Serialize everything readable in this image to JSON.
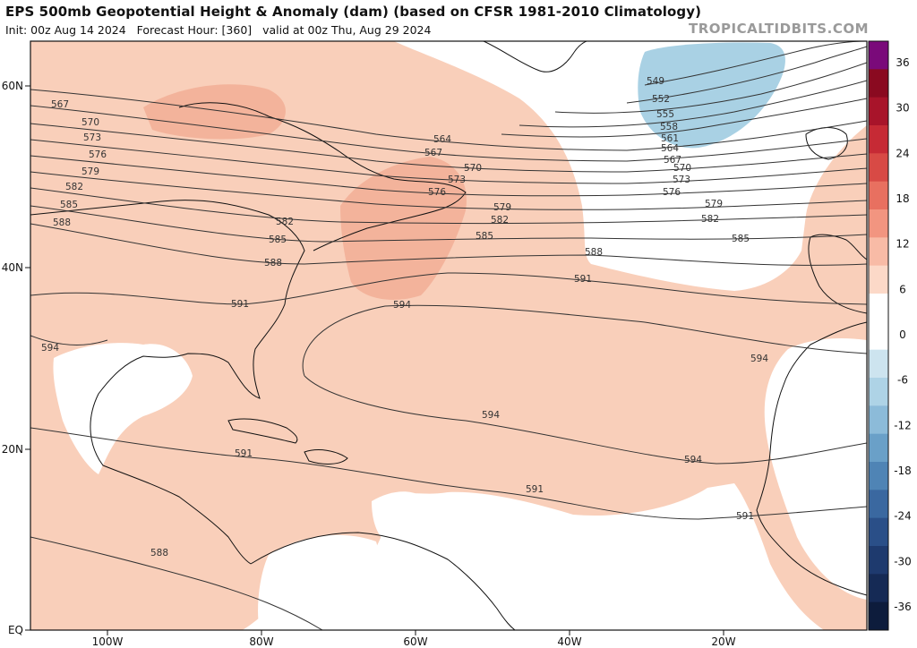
{
  "header": {
    "title": "EPS 500mb Geopotential Height & Anomaly (dam) (based on CFSR 1981-2010 Climatology)",
    "subtitle": "Init: 00z Aug 14 2024   Forecast Hour: [360]   valid at 00z Thu, Aug 29 2024",
    "credit": "TROPICALTIDBITS.COM"
  },
  "axes": {
    "lat_labels": [
      "60N",
      "40N",
      "20N",
      "EQ"
    ],
    "lon_labels": [
      "100W",
      "80W",
      "60W",
      "40W",
      "20W"
    ]
  },
  "colorbar": {
    "ticks": [
      "36",
      "30",
      "24",
      "18",
      "12",
      "6",
      "0",
      "-6",
      "-12",
      "-18",
      "-24",
      "-30",
      "-36"
    ],
    "colors": [
      "#7a0a7a",
      "#8a0a20",
      "#a8142a",
      "#c62a35",
      "#d84a45",
      "#e87060",
      "#f29580",
      "#f8bba6",
      "#fcd9c8",
      "#ffffff",
      "#ffffff",
      "#cde4ef",
      "#aed3e6",
      "#8cbbd9",
      "#6aa0c8",
      "#4f84b5",
      "#3a68a0",
      "#2a4f88",
      "#1e3a6e",
      "#152a55",
      "#0d1c3c"
    ],
    "anomaly_positive": "#f9cfba",
    "anomaly_strong": "#f3b39b",
    "anomaly_negative": "#a9d1e4"
  },
  "contours": {
    "labels": [
      "549",
      "552",
      "555",
      "558",
      "561",
      "564",
      "567",
      "570",
      "573",
      "576",
      "579",
      "582",
      "585",
      "588",
      "591",
      "594"
    ],
    "placed": [
      {
        "text": "567"
      },
      {
        "text": "570"
      },
      {
        "text": "573"
      },
      {
        "text": "576"
      },
      {
        "text": "579"
      },
      {
        "text": "582"
      },
      {
        "text": "585"
      },
      {
        "text": "588"
      },
      {
        "text": "594"
      },
      {
        "text": "582"
      },
      {
        "text": "585"
      },
      {
        "text": "588"
      },
      {
        "text": "591"
      },
      {
        "text": "564"
      },
      {
        "text": "567"
      },
      {
        "text": "570"
      },
      {
        "text": "573"
      },
      {
        "text": "576"
      },
      {
        "text": "579"
      },
      {
        "text": "582"
      },
      {
        "text": "585"
      },
      {
        "text": "588"
      },
      {
        "text": "591"
      },
      {
        "text": "594"
      },
      {
        "text": "549"
      },
      {
        "text": "552"
      },
      {
        "text": "555"
      },
      {
        "text": "558"
      },
      {
        "text": "561"
      },
      {
        "text": "564"
      },
      {
        "text": "567"
      },
      {
        "text": "570"
      },
      {
        "text": "573"
      },
      {
        "text": "576"
      },
      {
        "text": "579"
      },
      {
        "text": "582"
      },
      {
        "text": "585"
      },
      {
        "text": "594"
      },
      {
        "text": "594"
      },
      {
        "text": "594"
      },
      {
        "text": "591"
      },
      {
        "text": "591"
      },
      {
        "text": "591"
      },
      {
        "text": "588"
      }
    ]
  }
}
